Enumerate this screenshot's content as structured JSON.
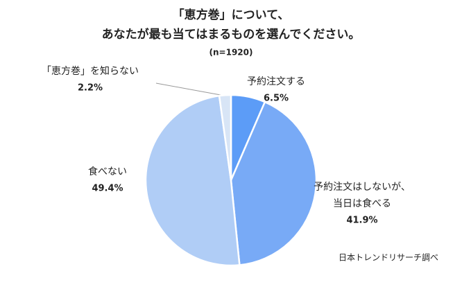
{
  "chart_data": {
    "type": "pie",
    "title": [
      "「恵方巻」について、",
      "あなたが最も当てはまるものを選んでください。"
    ],
    "subtitle": "(n=1920)",
    "source": "日本トレンドリサーチ調べ",
    "categories": [
      "予約注文する",
      "予約注文はしないが、\n当日は食べる",
      "食べない",
      "「恵方巻」を知らない"
    ],
    "values": [
      6.5,
      41.9,
      49.4,
      2.2
    ],
    "value_labels": [
      "6.5%",
      "41.9%",
      "49.4%",
      "2.2%"
    ],
    "colors": [
      "#5c9cf7",
      "#78aaf6",
      "#b0cdf6",
      "#d8e5f6"
    ]
  }
}
